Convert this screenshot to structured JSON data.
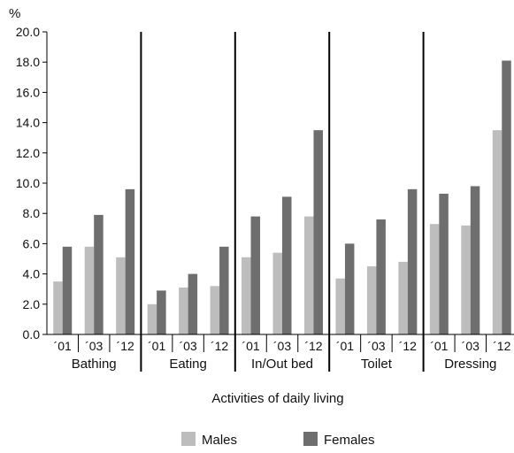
{
  "chart_data": {
    "type": "bar",
    "ylabel": "%",
    "xlabel": "Activities of daily living",
    "ylim": [
      0,
      20
    ],
    "yticks": [
      "0.0",
      "2.0",
      "4.0",
      "6.0",
      "8.0",
      "10.0",
      "12.0",
      "14.0",
      "16.0",
      "18.0",
      "20.0"
    ],
    "groups": [
      {
        "name": "Bathing",
        "years": [
          "´01",
          "´03",
          "´12"
        ]
      },
      {
        "name": "Eating",
        "years": [
          "´01",
          "´03",
          "´12"
        ]
      },
      {
        "name": "In/Out bed",
        "years": [
          "´01",
          "´03",
          "´12"
        ]
      },
      {
        "name": "Toilet",
        "years": [
          "´01",
          "´03",
          "´12"
        ]
      },
      {
        "name": "Dressing",
        "years": [
          "´01",
          "´03",
          "´12"
        ]
      }
    ],
    "series": [
      {
        "name": "Males",
        "color": "#bdbdbd",
        "values": [
          [
            3.5,
            5.8,
            5.1
          ],
          [
            2.0,
            3.1,
            3.2
          ],
          [
            5.1,
            5.4,
            7.8
          ],
          [
            3.7,
            4.5,
            4.8
          ],
          [
            7.3,
            7.2,
            13.5
          ]
        ]
      },
      {
        "name": "Females",
        "color": "#6e6e6e",
        "values": [
          [
            5.8,
            7.9,
            9.6
          ],
          [
            2.9,
            4.0,
            5.8
          ],
          [
            7.8,
            9.1,
            13.5
          ],
          [
            6.0,
            7.6,
            9.6
          ],
          [
            9.3,
            9.8,
            18.1
          ]
        ]
      }
    ],
    "legend_position": "bottom-center",
    "grid": false
  }
}
